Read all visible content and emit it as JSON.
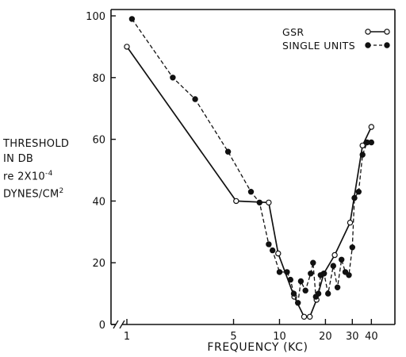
{
  "chart_data": {
    "type": "line",
    "title": "",
    "xlabel": "FREQUENCY (KC)",
    "ylabel_lines": [
      "THRESHOLD",
      "IN DB",
      "re 2X10",
      "DYNES/CM"
    ],
    "ylabel_exponents": [
      "-4",
      "2"
    ],
    "x_scale": "log",
    "xlim": [
      1,
      50
    ],
    "ylim": [
      0,
      100
    ],
    "x_ticks": [
      1,
      5,
      10,
      20,
      30,
      40
    ],
    "x_tick_labels": [
      "1",
      "5",
      "10",
      "20",
      "30",
      "40"
    ],
    "y_ticks": [
      0,
      20,
      40,
      60,
      80,
      100
    ],
    "y_tick_labels": [
      "0",
      "20",
      "40",
      "60",
      "80",
      "100"
    ],
    "grid": false,
    "legend_position": "top-right",
    "series": [
      {
        "name": "GSR",
        "style": "solid",
        "marker": "open-circle",
        "x": [
          1,
          5.2,
          8.5,
          9.8,
          12.5,
          14.5,
          15.8,
          17.5,
          19.5,
          23,
          29,
          35,
          40
        ],
        "y": [
          90,
          40,
          39.5,
          23,
          9,
          2.5,
          2.5,
          8,
          16.5,
          22.5,
          33,
          58,
          64
        ]
      },
      {
        "name": "SINGLE UNITS",
        "style": "dashed",
        "marker": "filled-circle",
        "x": [
          1.08,
          2,
          2.8,
          4.6,
          6.5,
          7.4,
          8.5,
          9,
          10,
          11.2,
          11.8,
          12.4,
          13.2,
          13.8,
          14.8,
          16,
          16.6,
          17.3,
          18,
          18.6,
          19.6,
          20.8,
          22.5,
          24,
          25.5,
          27,
          28.5,
          30,
          31,
          33,
          35,
          37.5,
          40
        ],
        "y": [
          99,
          80,
          73,
          56,
          43,
          39.5,
          26,
          24,
          17,
          17,
          14.5,
          10,
          7,
          14,
          11,
          16.5,
          20,
          9,
          10,
          16,
          16.5,
          10,
          19,
          12,
          21,
          17,
          16,
          25,
          41,
          43,
          55,
          59,
          59
        ]
      }
    ]
  }
}
